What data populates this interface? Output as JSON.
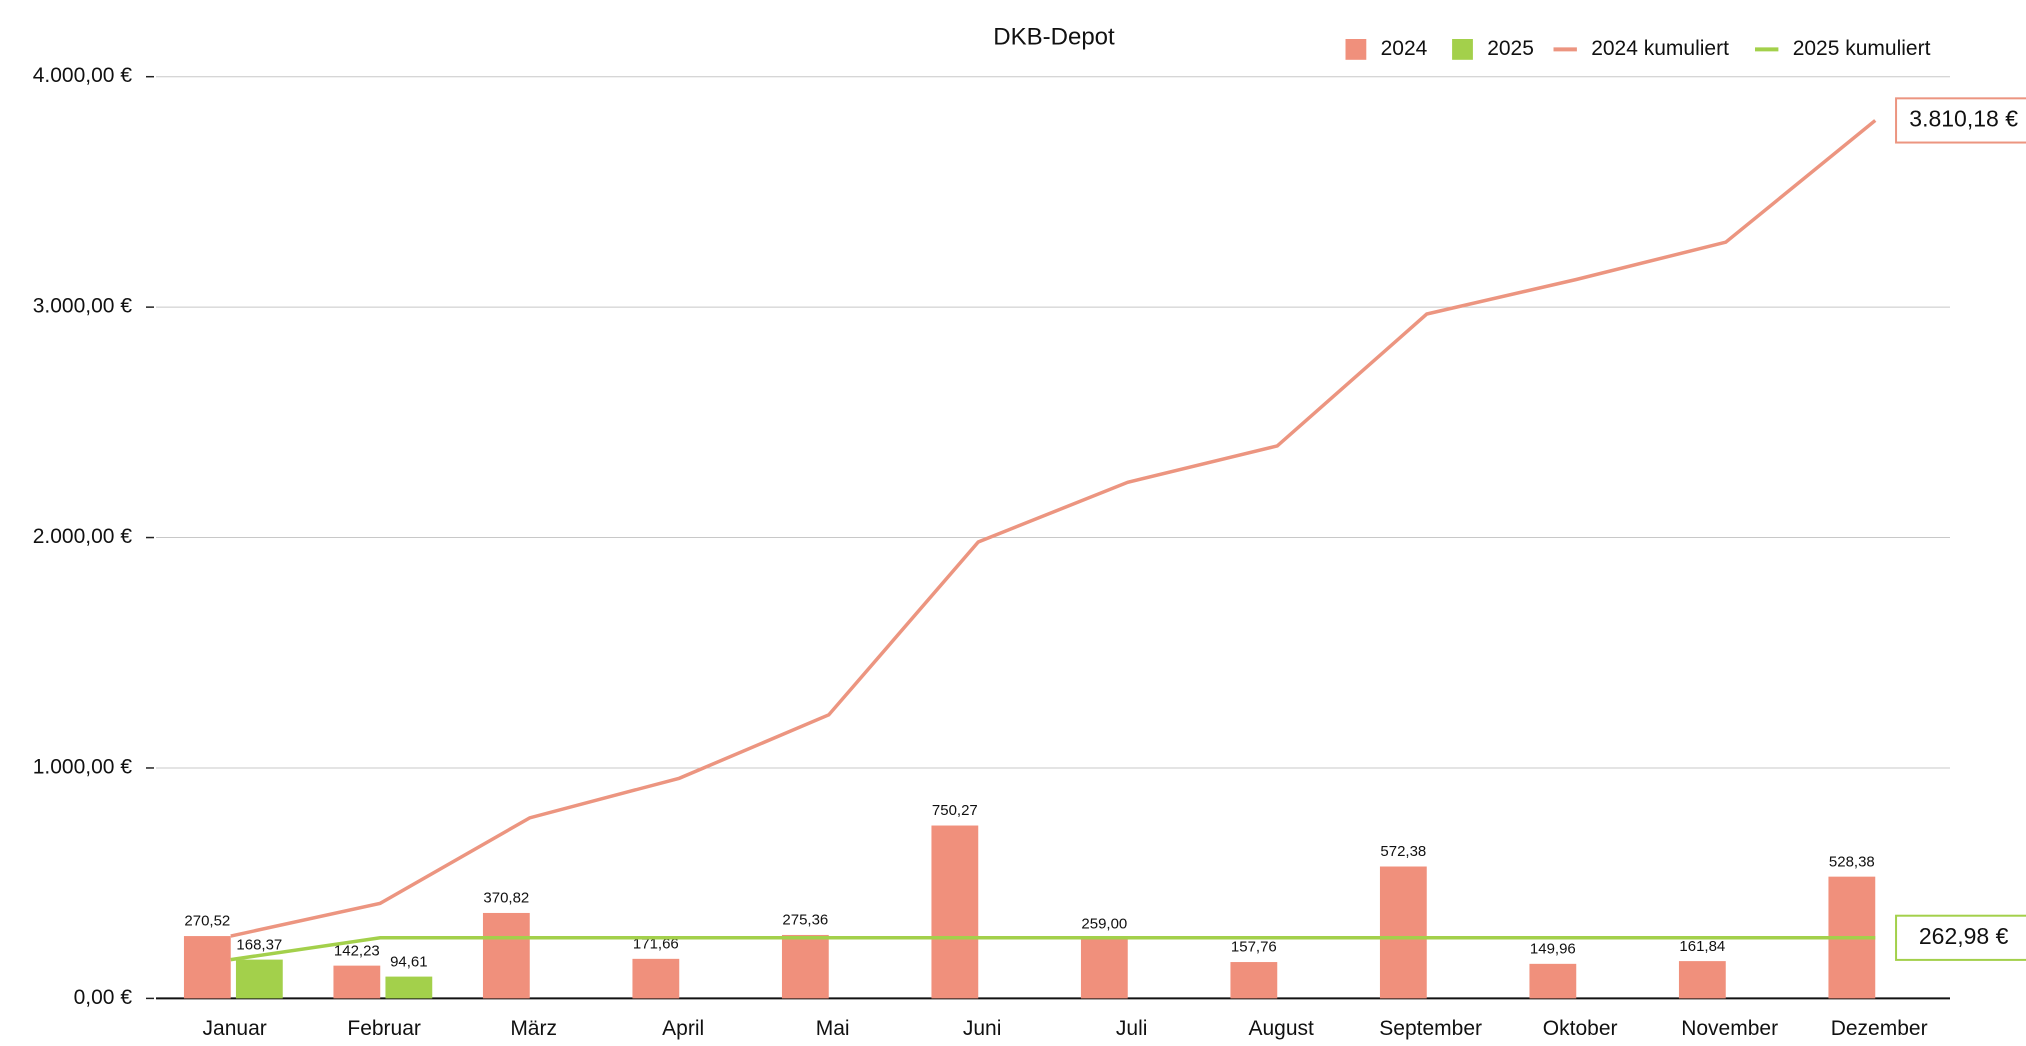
{
  "chart_data": {
    "type": "bar",
    "title": "DKB-Depot",
    "categories": [
      "Januar",
      "Februar",
      "März",
      "April",
      "Mai",
      "Juni",
      "Juli",
      "August",
      "September",
      "Oktober",
      "November",
      "Dezember"
    ],
    "series": [
      {
        "name": "2024",
        "type": "bar",
        "color": "#f0907c",
        "values": [
          270.52,
          142.23,
          370.82,
          171.66,
          275.36,
          750.27,
          259.0,
          157.76,
          572.38,
          149.96,
          161.84,
          528.38
        ],
        "value_labels": [
          "270,52",
          "142,23",
          "370,82",
          "171,66",
          "275,36",
          "750,27",
          "259,00",
          "157,76",
          "572,38",
          "149,96",
          "161,84",
          "528,38"
        ]
      },
      {
        "name": "2025",
        "type": "bar",
        "color": "#a3d04b",
        "values": [
          168.37,
          94.61,
          null,
          null,
          null,
          null,
          null,
          null,
          null,
          null,
          null,
          null
        ],
        "value_labels": [
          "168,37",
          "94,61",
          null,
          null,
          null,
          null,
          null,
          null,
          null,
          null,
          null,
          null
        ]
      },
      {
        "name": "2024 kumuliert",
        "type": "line",
        "color": "#ec9580",
        "values": [
          270.52,
          412.75,
          783.57,
          955.23,
          1230.59,
          1980.86,
          2239.86,
          2397.62,
          2970.0,
          3119.96,
          3281.8,
          3810.18
        ],
        "end_label": {
          "value": 3810.18,
          "label": "3.810,18 €"
        }
      },
      {
        "name": "2025 kumuliert",
        "type": "line",
        "color": "#a3d04b",
        "values": [
          168.37,
          262.98,
          262.98,
          262.98,
          262.98,
          262.98,
          262.98,
          262.98,
          262.98,
          262.98,
          262.98,
          262.98
        ],
        "end_label": {
          "value": 262.98,
          "label": "262,98 €"
        }
      }
    ],
    "ylim": [
      0,
      4000
    ],
    "yticks": [
      {
        "value": 0,
        "label": "0,00 €"
      },
      {
        "value": 1000,
        "label": "1.000,00 €"
      },
      {
        "value": 2000,
        "label": "2.000,00 €"
      },
      {
        "value": 3000,
        "label": "3.000,00 €"
      },
      {
        "value": 4000,
        "label": "4.000,00 €"
      }
    ],
    "grid": true,
    "legend": "top-right"
  }
}
